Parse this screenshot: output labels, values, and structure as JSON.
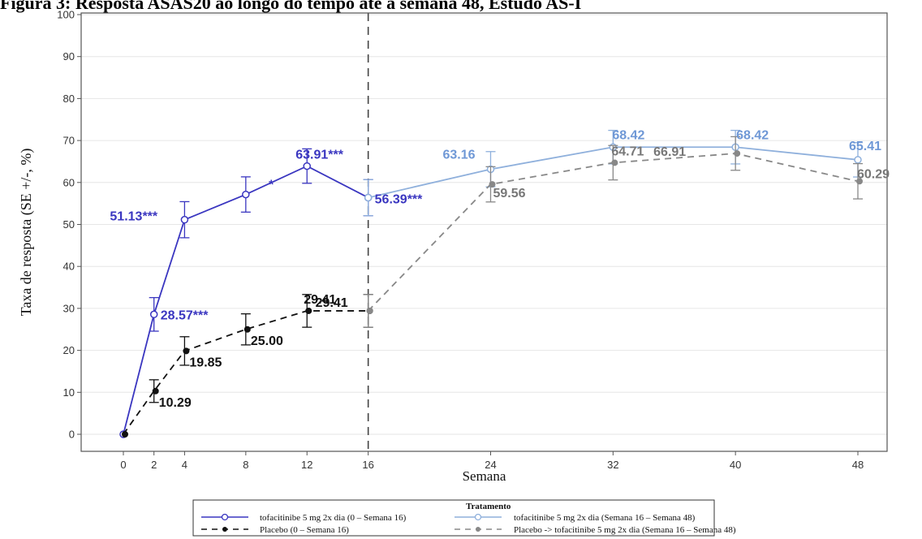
{
  "chart_data": {
    "type": "line",
    "title": "Figura 3: Resposta ASAS20 ao longo do tempo até a semana 48, Estudo AS-I",
    "xlabel": "Semana",
    "ylabel": "Taxa de resposta (SE +/-, %)",
    "ylim": [
      0,
      100
    ],
    "yticks": [
      0,
      10,
      20,
      30,
      40,
      50,
      60,
      70,
      80,
      90,
      100
    ],
    "xticks": [
      0,
      2,
      4,
      8,
      12,
      16,
      24,
      32,
      40,
      48
    ],
    "legend_title": "Tratamento",
    "legend_position": "bottom",
    "grid": true,
    "reference_line_x": 16,
    "series": [
      {
        "name": "tofacitinibe 5 mg 2x dia (0 – Semana 16)",
        "color": "#3a36c0",
        "line": "solid",
        "marker": "open-circle",
        "x": [
          0,
          2,
          4,
          8,
          12,
          16
        ],
        "values": [
          0,
          28.57,
          51.13,
          57.14,
          63.91,
          56.39
        ],
        "err": [
          0,
          4,
          4.3,
          4.2,
          4.1,
          4.3
        ],
        "point_labels": [
          "",
          "28.57***",
          "51.13***",
          "",
          "63.91***",
          "56.39***"
        ]
      },
      {
        "name": "Placebo (0 – Semana 16)",
        "color": "#111111",
        "line": "dashed",
        "marker": "filled-circle",
        "x": [
          0,
          2,
          4,
          8,
          12,
          16
        ],
        "values": [
          0,
          10.29,
          19.85,
          25.0,
          29.41,
          29.41
        ],
        "err": [
          0,
          2.7,
          3.4,
          3.7,
          3.9,
          3.9
        ],
        "point_labels": [
          "",
          "10.29",
          "19.85",
          "25.00",
          "29.41",
          "29.41"
        ]
      },
      {
        "name": "tofacitinibe 5 mg 2x dia (Semana 16 – Semana 48)",
        "color": "#8fb0dc",
        "line": "solid",
        "marker": "open-circle",
        "x": [
          16,
          24,
          32,
          40,
          48
        ],
        "values": [
          56.39,
          63.16,
          68.42,
          68.42,
          65.41
        ],
        "err": [
          4.3,
          4.2,
          4.0,
          4.0,
          4.1
        ],
        "point_labels": [
          "",
          "63.16",
          "68.42",
          "68.42",
          "65.41"
        ]
      },
      {
        "name": "Placebo -> tofacitinibe 5 mg 2x dia (Semana 16 – Semana 48)",
        "color": "#888888",
        "line": "dashed",
        "marker": "filled-circle",
        "x": [
          16,
          24,
          32,
          40,
          48
        ],
        "values": [
          29.41,
          59.56,
          64.71,
          66.91,
          60.29
        ],
        "err": [
          3.9,
          4.2,
          4.1,
          4.0,
          4.2
        ],
        "point_labels": [
          "",
          "59.56",
          "64.71",
          "66.91",
          "60.29"
        ]
      }
    ],
    "annotations": [
      {
        "text": "*",
        "x": 9.5,
        "y": 58.5
      }
    ]
  }
}
